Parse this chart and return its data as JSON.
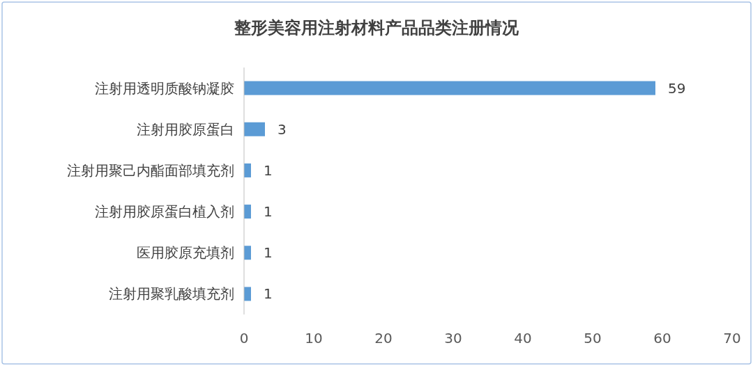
{
  "chart_data": {
    "type": "bar",
    "orientation": "horizontal",
    "title": "整形美容用注射材料产品品类注册情况",
    "categories": [
      "注射用透明质酸钠凝胶",
      "注射用胶原蛋白",
      "注射用聚己内酯面部填充剂",
      "注射用胶原蛋白植入剂",
      "医用胶原充填剂",
      "注射用聚乳酸填充剂"
    ],
    "values": [
      59,
      3,
      1,
      1,
      1,
      1
    ],
    "color": "#5b9bd5",
    "data_labels": true,
    "xlim": [
      0,
      70
    ],
    "xticks": [
      0,
      10,
      20,
      30,
      40,
      50,
      60,
      70
    ],
    "grid": false
  }
}
